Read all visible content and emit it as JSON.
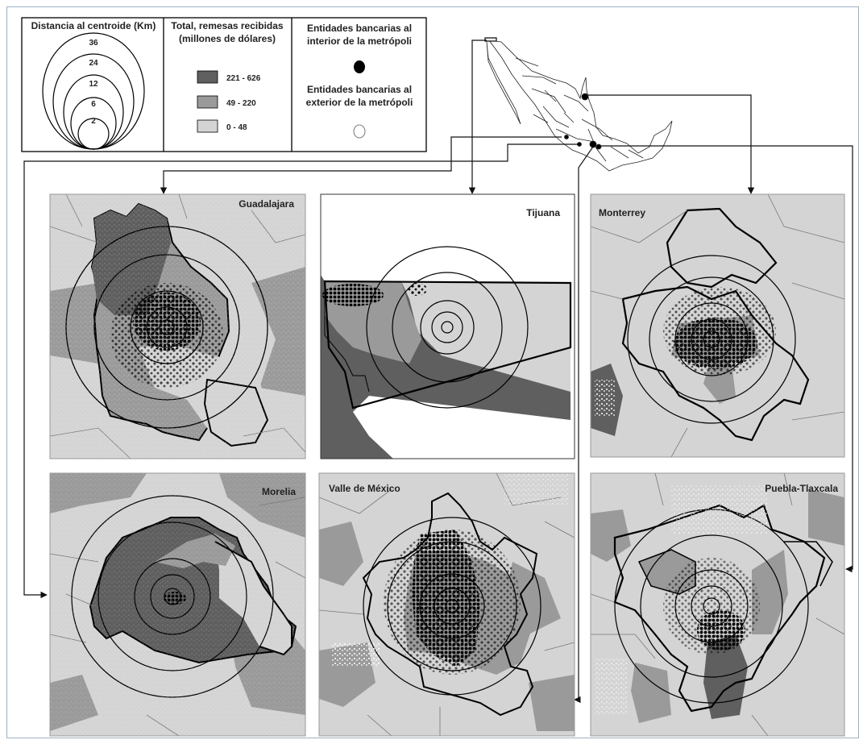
{
  "legend": {
    "distance_title": "Distancia al centroide (Km)",
    "distance_rings": [
      "36",
      "24",
      "12",
      "6",
      "2"
    ],
    "remittance_title_1": "Total, remesas recibidas",
    "remittance_title_2": "(millones de dólares)",
    "remittance_classes": [
      {
        "label": "221 - 626",
        "color": "#5f5f5f"
      },
      {
        "label": "49 - 220",
        "color": "#9a9a9a"
      },
      {
        "label": "0 - 48",
        "color": "#d4d4d4"
      }
    ],
    "bank_inside_1": "Entidades bancarias al",
    "bank_inside_2": "interior de la metrópoli",
    "bank_outside_1": "Entidades bancarias al",
    "bank_outside_2": "exterior de la metrópoli"
  },
  "panels": {
    "guadalajara": "Guadalajara",
    "tijuana": "Tijuana",
    "monterrey": "Monterrey",
    "morelia": "Morelia",
    "valle": "Valle de México",
    "puebla": "Puebla-Tlaxcala"
  }
}
